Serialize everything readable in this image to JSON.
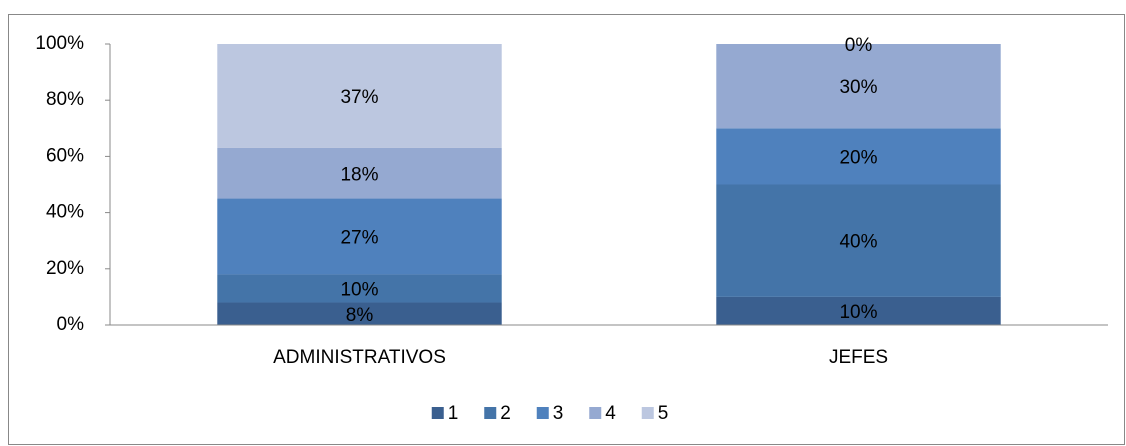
{
  "chart_data": {
    "type": "stacked_bar",
    "categories": [
      "ADMINISTRATIVOS",
      "JEFES"
    ],
    "series": [
      {
        "name": "1",
        "color": "#3a5f8f",
        "values": [
          8,
          10
        ],
        "value_labels": [
          "8%",
          "10%"
        ]
      },
      {
        "name": "2",
        "color": "#4474a8",
        "values": [
          10,
          40
        ],
        "value_labels": [
          "10%",
          "40%"
        ]
      },
      {
        "name": "3",
        "color": "#4f81bd",
        "values": [
          27,
          20
        ],
        "value_labels": [
          "27%",
          "20%"
        ]
      },
      {
        "name": "4",
        "color": "#95a9d1",
        "values": [
          18,
          30
        ],
        "value_labels": [
          "18%",
          "30%"
        ]
      },
      {
        "name": "5",
        "color": "#bcc7e0",
        "values": [
          37,
          0
        ],
        "value_labels": [
          "37%",
          "0%"
        ]
      }
    ],
    "ylim": [
      0,
      100
    ],
    "yticks": [
      {
        "value": 0,
        "label": "0%"
      },
      {
        "value": 20,
        "label": "20%"
      },
      {
        "value": 40,
        "label": "40%"
      },
      {
        "value": 60,
        "label": "60%"
      },
      {
        "value": 80,
        "label": "80%"
      },
      {
        "value": 100,
        "label": "100%"
      }
    ],
    "legend": "bottom"
  }
}
